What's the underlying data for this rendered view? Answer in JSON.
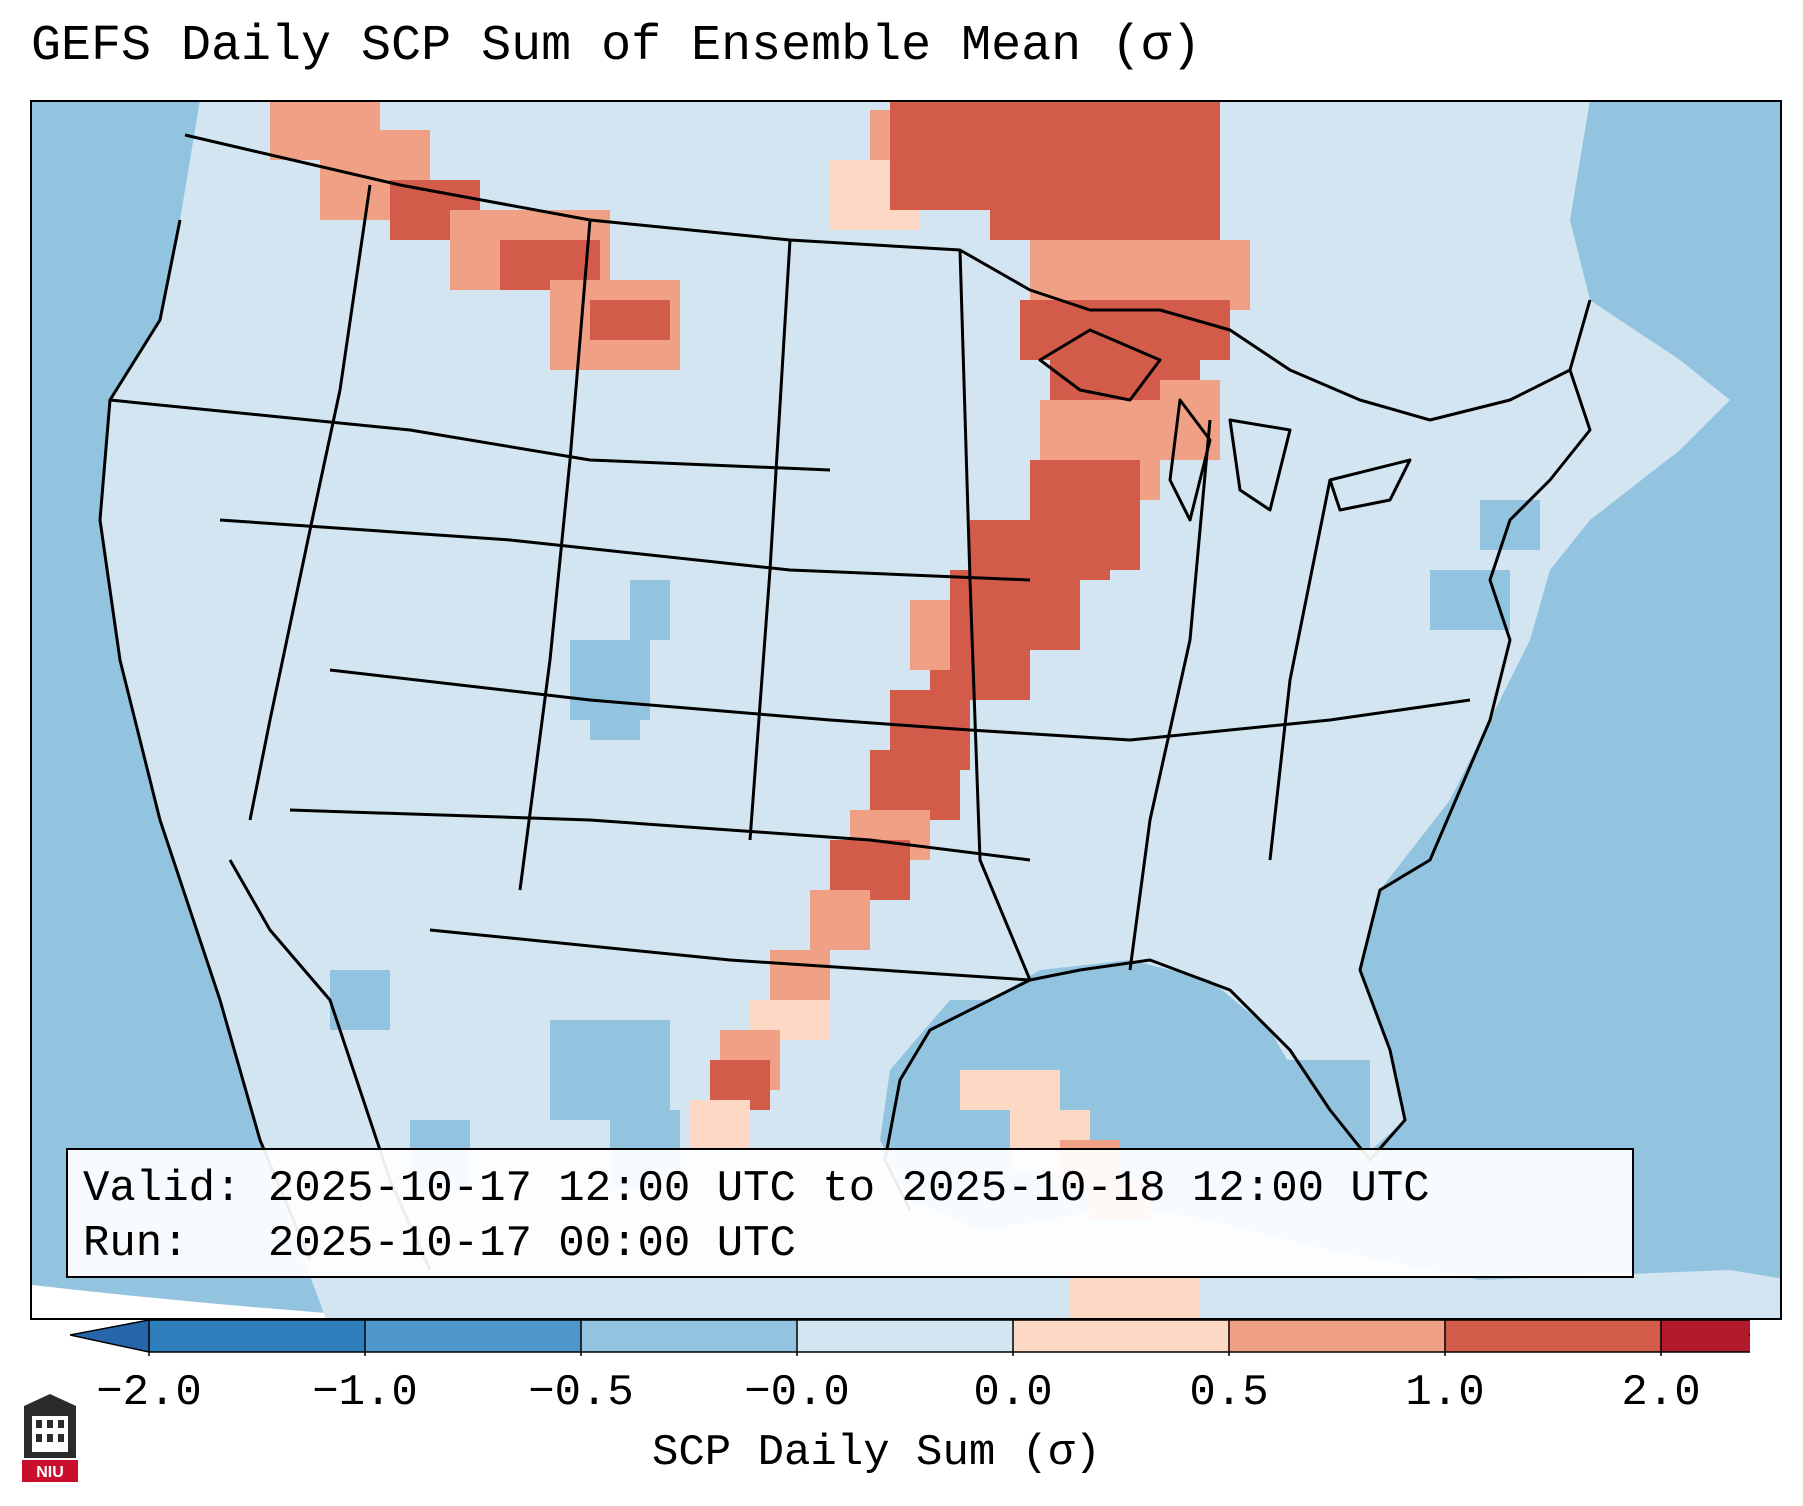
{
  "title": "GEFS Daily SCP Sum of Ensemble Mean (σ)",
  "info": {
    "valid_label": "Valid:",
    "valid_value": "2025-10-17 12:00 UTC to 2025-10-18 12:00 UTC",
    "run_label": "Run:",
    "run_value": "2025-10-17 00:00 UTC"
  },
  "colorbar": {
    "label": "SCP Daily Sum (σ)",
    "ticks": [
      "−2.0",
      "−1.0",
      "−0.5",
      "−0.0",
      "0.0",
      "0.5",
      "1.0",
      "2.0"
    ],
    "colors": [
      "#2f7fbc",
      "#4f98cc",
      "#92c4e0",
      "#d2e5f1",
      "#fdd8c4",
      "#f0a084",
      "#d25b4a",
      "#b31b2c"
    ],
    "under_color": "#2866ac",
    "over_color": "#a50f25"
  },
  "map": {
    "ocean_color": "#92c4e0",
    "land_color": "#d2e5f1",
    "offmap_color": "#ffffff"
  },
  "logo": {
    "text": "NIU"
  }
}
